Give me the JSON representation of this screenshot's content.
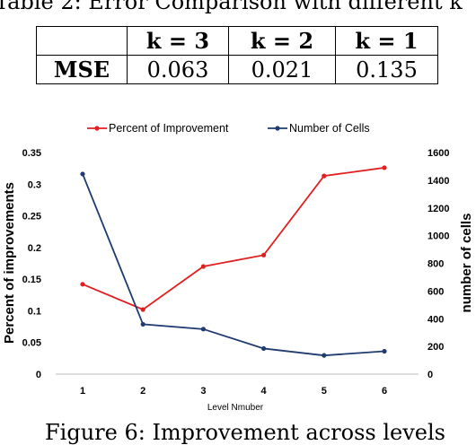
{
  "table": {
    "caption": "Table 2: Error Comparison with different k",
    "header": [
      "",
      "k = 3",
      "k = 2",
      "k = 1"
    ],
    "rows": [
      {
        "label": "MSE",
        "values": [
          "0.063",
          "0.021",
          "0.135"
        ]
      }
    ]
  },
  "figure": {
    "caption": "Figure 6: Improvement across levels"
  },
  "chart_data": {
    "type": "line",
    "x": [
      1,
      2,
      3,
      4,
      5,
      6
    ],
    "xlabel": "Level Nmuber",
    "ylabel": "Percent of improvements",
    "y2label": "number of cells",
    "ylim": [
      0,
      0.35
    ],
    "y2lim": [
      0,
      1600
    ],
    "yticks": [
      "0",
      "0.05",
      "0.1",
      "0.15",
      "0.2",
      "0.25",
      "0.3",
      "0.35"
    ],
    "y2ticks": [
      "0",
      "200",
      "400",
      "600",
      "800",
      "1000",
      "1200",
      "1400",
      "1600"
    ],
    "legend_position": "top",
    "grid": false,
    "series": [
      {
        "name": "Percent of Improvement",
        "axis": "left",
        "color": "#e02020",
        "values": [
          0.142,
          0.102,
          0.17,
          0.188,
          0.313,
          0.326
        ]
      },
      {
        "name": "Number of Cells",
        "axis": "right",
        "color": "#1f3b70",
        "values": [
          1445,
          360,
          325,
          185,
          135,
          165
        ]
      }
    ]
  }
}
